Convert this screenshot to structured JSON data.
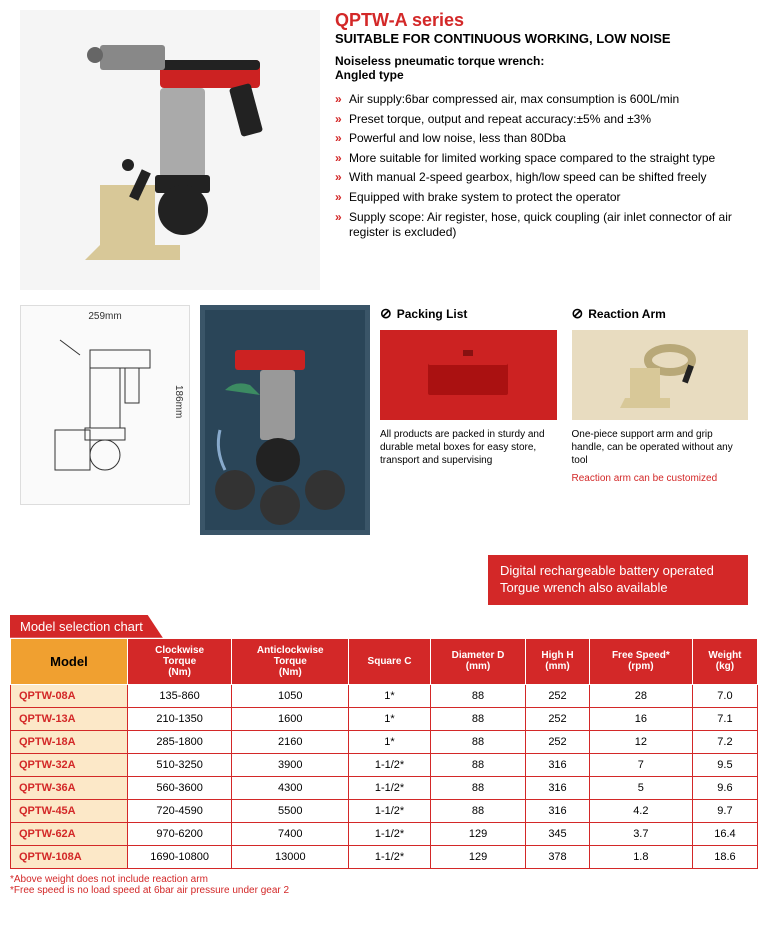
{
  "header": {
    "series_title": "QPTW-A series",
    "subtitle": "SUITABLE FOR CONTINUOUS WORKING, LOW NOISE",
    "desc_line1": "Noiseless pneumatic torque wrench:",
    "desc_line2": "Angled type"
  },
  "features": [
    "Air supply:6bar compressed air, max consumption is 600L/min",
    "Preset torque, output and repeat accuracy:±5% and ±3%",
    "Powerful and low noise, less than 80Dba",
    "More suitable for limited working space compared to the straight type",
    "With manual 2-speed gearbox, high/low speed can be shifted freely",
    "Equipped with brake system to protect the operator",
    "Supply scope: Air register, hose, quick coupling (air inlet connector of air register is excluded)"
  ],
  "diagram": {
    "dim_w": "259mm",
    "dim_h": "186mm"
  },
  "packing": {
    "title": "Packing List",
    "text": "All products are packed in sturdy and durable metal boxes for easy store, transport and supervising"
  },
  "reaction": {
    "title": "Reaction Arm",
    "text": "One-piece support arm and grip handle, can be operated without any tool",
    "note": "Reaction arm can be customized"
  },
  "banner": "Digital rechargeable battery operated Torgue wrench also available",
  "chart_title": "Model selection chart",
  "columns": [
    "Model",
    "Clockwise Torque (Nm)",
    "Anticlockwise Torque (Nm)",
    "Square C",
    "Diameter D (mm)",
    "High H (mm)",
    "Free Speed* (rpm)",
    "Weight (kg)"
  ],
  "rows": [
    [
      "QPTW-08A",
      "135-860",
      "1050",
      "1*",
      "88",
      "252",
      "28",
      "7.0"
    ],
    [
      "QPTW-13A",
      "210-1350",
      "1600",
      "1*",
      "88",
      "252",
      "16",
      "7.1"
    ],
    [
      "QPTW-18A",
      "285-1800",
      "2160",
      "1*",
      "88",
      "252",
      "12",
      "7.2"
    ],
    [
      "QPTW-32A",
      "510-3250",
      "3900",
      "1-1/2*",
      "88",
      "316",
      "7",
      "9.5"
    ],
    [
      "QPTW-36A",
      "560-3600",
      "4300",
      "1-1/2*",
      "88",
      "316",
      "5",
      "9.6"
    ],
    [
      "QPTW-45A",
      "720-4590",
      "5500",
      "1-1/2*",
      "88",
      "316",
      "4.2",
      "9.7"
    ],
    [
      "QPTW-62A",
      "970-6200",
      "7400",
      "1-1/2*",
      "129",
      "345",
      "3.7",
      "16.4"
    ],
    [
      "QPTW-108A",
      "1690-10800",
      "13000",
      "1-1/2*",
      "129",
      "378",
      "1.8",
      "18.6"
    ]
  ],
  "footnote1": "*Above weight does not include reaction arm",
  "footnote2": "*Free speed is no load speed at 6bar air pressure under gear 2",
  "colors": {
    "brand_red": "#d32828",
    "model_bg": "#fce8c8",
    "header_orange": "#f0a030"
  }
}
